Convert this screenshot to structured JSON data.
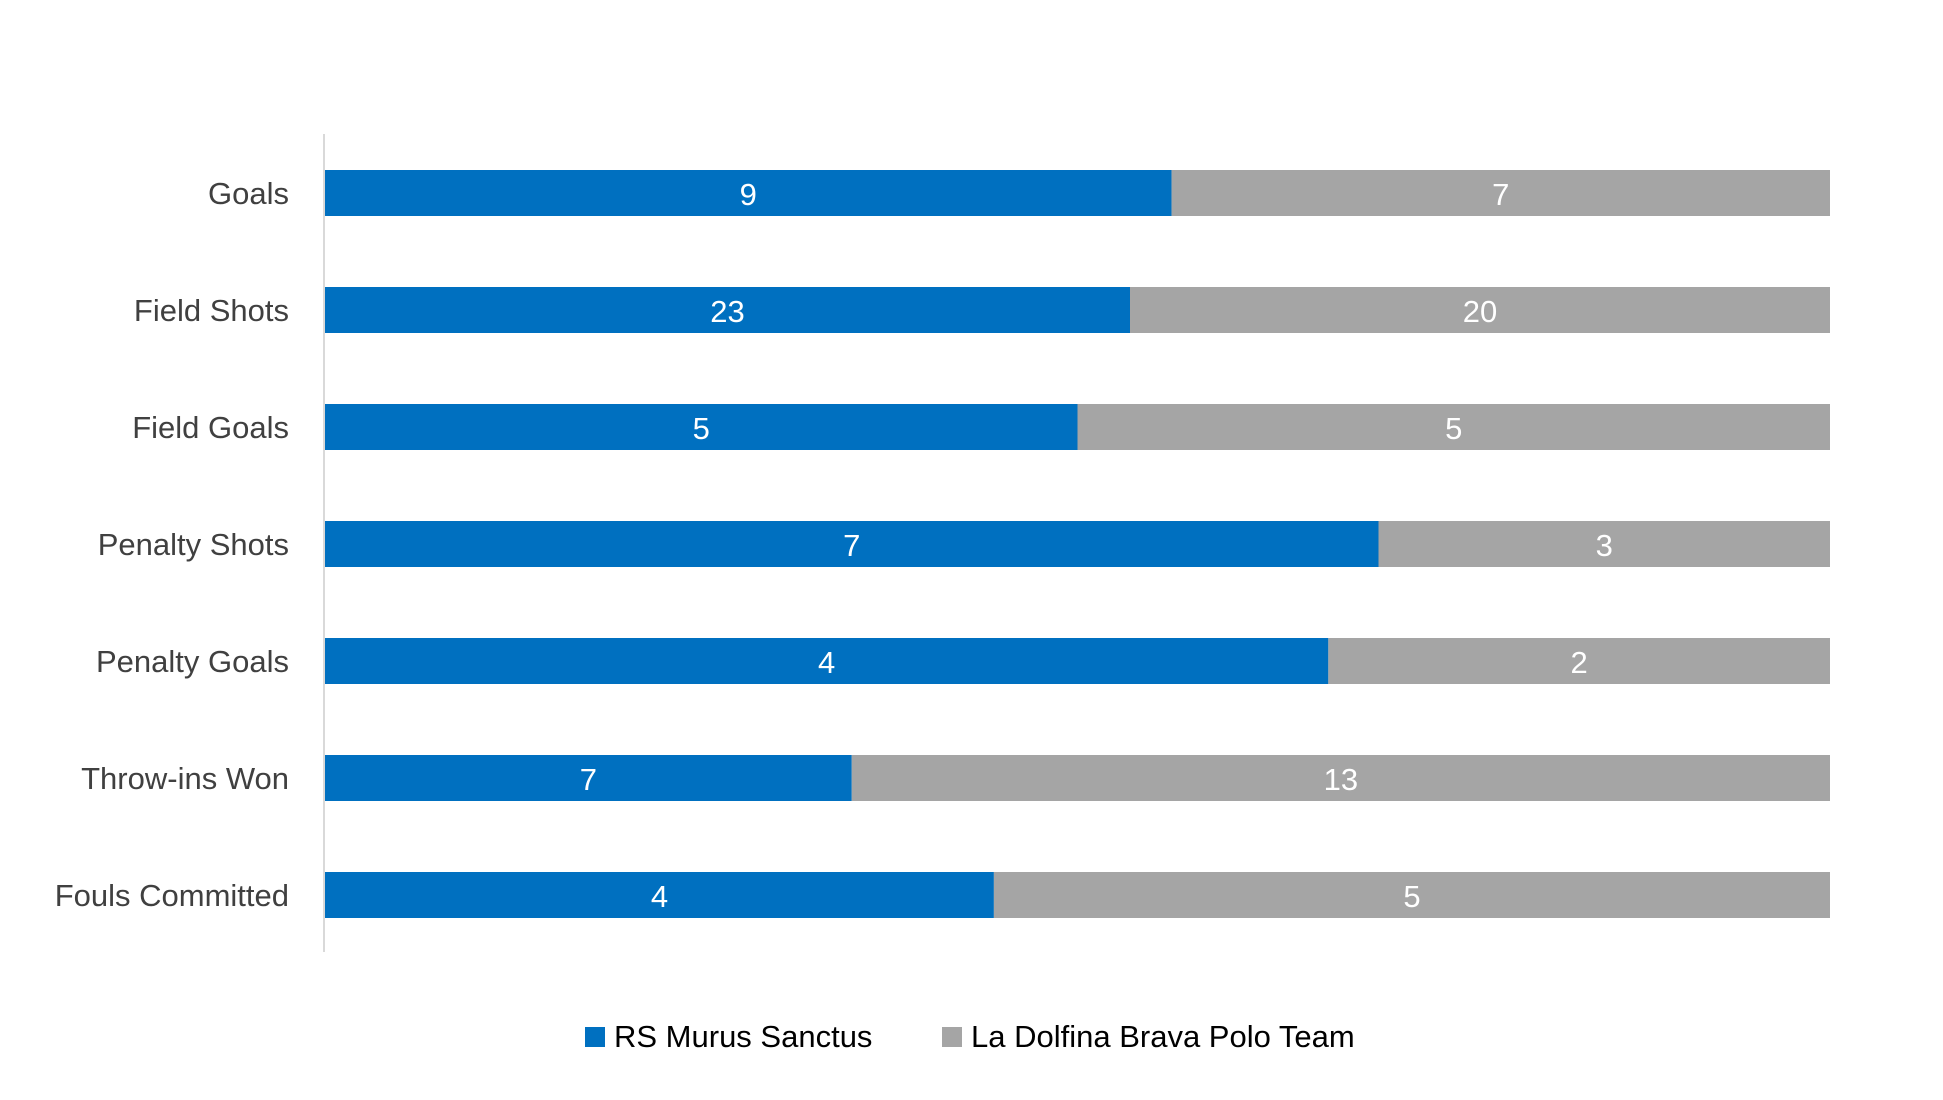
{
  "chart_data": {
    "type": "bar",
    "orientation": "horizontal",
    "stacking": "percent",
    "title": "",
    "xlabel": "",
    "ylabel": "",
    "categories": [
      "Goals",
      "Field Shots",
      "Field Goals",
      "Penalty Shots",
      "Penalty Goals",
      "Throw-ins Won",
      "Fouls Committed"
    ],
    "series": [
      {
        "name": "RS Murus Sanctus",
        "color": "#0070C0",
        "values": [
          9,
          23,
          5,
          7,
          4,
          7,
          4
        ]
      },
      {
        "name": "La Dolfina Brava Polo Team",
        "color": "#A5A5A5",
        "values": [
          7,
          20,
          5,
          3,
          2,
          13,
          5
        ]
      }
    ],
    "grid": false,
    "legend_position": "bottom",
    "data_labels": true
  }
}
